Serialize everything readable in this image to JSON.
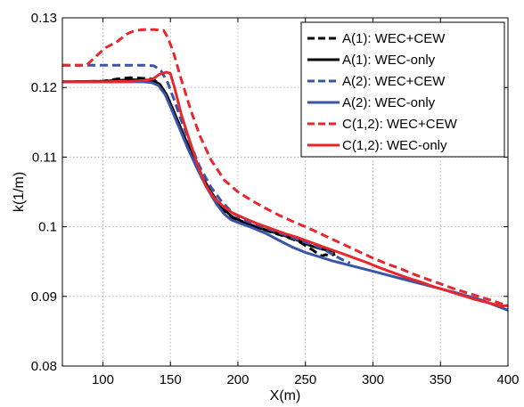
{
  "chart_data": {
    "type": "line",
    "title": "",
    "xlabel": "X(m)",
    "ylabel": "k(1/m)",
    "xlim": [
      70,
      400
    ],
    "ylim": [
      0.08,
      0.13
    ],
    "xticks": [
      100,
      150,
      200,
      250,
      300,
      350,
      400
    ],
    "xtick_labels": [
      "100",
      "150",
      "200",
      "250",
      "300",
      "350",
      "400"
    ],
    "yticks": [
      0.08,
      0.09,
      0.1,
      0.11,
      0.12,
      0.13
    ],
    "ytick_labels": [
      "0.08",
      "0.09",
      "0.1",
      "0.11",
      "0.12",
      "0.13"
    ],
    "grid": true,
    "legend_position": "top-right",
    "series": [
      {
        "name": "A(1): WEC+CEW",
        "color": "#000000",
        "dash": "dashed",
        "x": [
          70,
          100,
          110,
          120,
          130,
          137,
          142,
          147,
          152,
          158,
          165,
          172,
          180,
          188,
          196,
          205,
          215,
          225,
          235,
          245,
          250,
          255,
          258,
          262,
          265,
          268,
          272
        ],
        "y": [
          0.1208,
          0.1209,
          0.1212,
          0.1214,
          0.1213,
          0.1212,
          0.1205,
          0.119,
          0.1168,
          0.114,
          0.1108,
          0.1075,
          0.1047,
          0.1025,
          0.1012,
          0.1005,
          0.0999,
          0.0992,
          0.0986,
          0.0979,
          0.0973,
          0.0967,
          0.0963,
          0.0958,
          0.096,
          0.0958,
          0.0961
        ]
      },
      {
        "name": "A(1): WEC-only",
        "color": "#000000",
        "dash": "solid",
        "x": [
          70,
          100,
          110,
          120,
          130,
          137,
          142,
          147,
          152,
          158,
          165,
          172,
          180,
          188,
          196,
          205,
          215,
          225,
          235,
          245,
          250,
          255,
          262,
          268,
          272
        ],
        "y": [
          0.1208,
          0.1209,
          0.121,
          0.1211,
          0.1211,
          0.121,
          0.1205,
          0.119,
          0.1168,
          0.114,
          0.1108,
          0.1077,
          0.105,
          0.1028,
          0.1014,
          0.1006,
          0.0999,
          0.0993,
          0.0987,
          0.098,
          0.0976,
          0.0972,
          0.0968,
          0.0966,
          0.0964
        ]
      },
      {
        "name": "A(2): WEC+CEW",
        "color": "#3a55a8",
        "dash": "dashed",
        "x": [
          70,
          100,
          120,
          133,
          138,
          143,
          148,
          153,
          158,
          165,
          172,
          180,
          188,
          196,
          205,
          215,
          225,
          235,
          245,
          255,
          265,
          272,
          278,
          283
        ],
        "y": [
          0.1232,
          0.1232,
          0.1232,
          0.1232,
          0.1231,
          0.1224,
          0.1207,
          0.1181,
          0.1153,
          0.1118,
          0.1085,
          0.1057,
          0.1036,
          0.102,
          0.1009,
          0.1002,
          0.0995,
          0.0988,
          0.0981,
          0.0974,
          0.0966,
          0.0958,
          0.0952,
          0.0948
        ]
      },
      {
        "name": "A(2): WEC-only",
        "color": "#3a55a8",
        "dash": "solid",
        "x": [
          70,
          100,
          120,
          130,
          136,
          141,
          146,
          151,
          157,
          163,
          170,
          177,
          184,
          190,
          195,
          200,
          210,
          220,
          230,
          240,
          250,
          260,
          270,
          280,
          290,
          300,
          320,
          340,
          360,
          380,
          400
        ],
        "y": [
          0.1208,
          0.1208,
          0.1208,
          0.1208,
          0.1207,
          0.1203,
          0.119,
          0.1168,
          0.114,
          0.1112,
          0.1083,
          0.1056,
          0.1033,
          0.1018,
          0.101,
          0.1006,
          0.0999,
          0.0991,
          0.0981,
          0.0971,
          0.0963,
          0.0957,
          0.0951,
          0.0946,
          0.0941,
          0.0936,
          0.0926,
          0.0916,
          0.0906,
          0.0895,
          0.088
        ]
      },
      {
        "name": "C(1,2): WEC+CEW",
        "color": "#e8262d",
        "dash": "dashed",
        "x": [
          70,
          88,
          95,
          102,
          110,
          118,
          124,
          130,
          138,
          145,
          148,
          152,
          158,
          165,
          172,
          180,
          190,
          200,
          210,
          220,
          230,
          240,
          250,
          260,
          270,
          280,
          290,
          300,
          310,
          320,
          330,
          340,
          350,
          360,
          370,
          380,
          390,
          400
        ],
        "y": [
          0.1232,
          0.1232,
          0.1245,
          0.1257,
          0.1265,
          0.1277,
          0.1282,
          0.1283,
          0.1283,
          0.1282,
          0.1272,
          0.1252,
          0.1212,
          0.1168,
          0.113,
          0.1096,
          0.1067,
          0.105,
          0.1038,
          0.1027,
          0.1017,
          0.1008,
          0.1,
          0.0991,
          0.0982,
          0.0973,
          0.0964,
          0.0955,
          0.0947,
          0.094,
          0.0932,
          0.0925,
          0.0918,
          0.0911,
          0.0905,
          0.0899,
          0.0893,
          0.0886
        ]
      },
      {
        "name": "C(1,2): WEC-only",
        "color": "#e8262d",
        "dash": "solid",
        "x": [
          70,
          100,
          120,
          130,
          137,
          142,
          147,
          150,
          153,
          158,
          164,
          170,
          176,
          182,
          190,
          196,
          205,
          215,
          225,
          235,
          245,
          255,
          265,
          275,
          285,
          295,
          305,
          315,
          325,
          335,
          345,
          355,
          365,
          375,
          385,
          395,
          400
        ],
        "y": [
          0.1208,
          0.1208,
          0.1209,
          0.121,
          0.1212,
          0.1219,
          0.1222,
          0.122,
          0.12,
          0.1162,
          0.1125,
          0.109,
          0.106,
          0.1042,
          0.1028,
          0.102,
          0.1012,
          0.1004,
          0.0997,
          0.099,
          0.0984,
          0.0977,
          0.097,
          0.0963,
          0.0956,
          0.0949,
          0.0941,
          0.0934,
          0.0927,
          0.0921,
          0.0914,
          0.0908,
          0.0902,
          0.0896,
          0.0891,
          0.0886,
          0.0887
        ]
      }
    ]
  }
}
